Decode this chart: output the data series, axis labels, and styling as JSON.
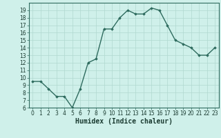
{
  "x": [
    0,
    1,
    2,
    3,
    4,
    5,
    6,
    7,
    8,
    9,
    10,
    11,
    12,
    13,
    14,
    15,
    16,
    17,
    18,
    19,
    20,
    21,
    22,
    23
  ],
  "y": [
    9.5,
    9.5,
    8.5,
    7.5,
    7.5,
    6.0,
    8.5,
    12.0,
    12.5,
    16.5,
    16.5,
    18.0,
    19.0,
    18.5,
    18.5,
    19.3,
    19.0,
    17.0,
    15.0,
    14.5,
    14.0,
    13.0,
    13.0,
    14.0
  ],
  "line_color": "#2e6b5e",
  "marker": "D",
  "markersize": 1.8,
  "linewidth": 1.0,
  "xlabel": "Humidex (Indice chaleur)",
  "ylim": [
    6,
    20
  ],
  "xlim": [
    -0.5,
    23.5
  ],
  "yticks": [
    6,
    7,
    8,
    9,
    10,
    11,
    12,
    13,
    14,
    15,
    16,
    17,
    18,
    19
  ],
  "xticks": [
    0,
    1,
    2,
    3,
    4,
    5,
    6,
    7,
    8,
    9,
    10,
    11,
    12,
    13,
    14,
    15,
    16,
    17,
    18,
    19,
    20,
    21,
    22,
    23
  ],
  "bg_color": "#cff0ea",
  "grid_color": "#b0d8d0",
  "tick_fontsize": 5.5,
  "xlabel_fontsize": 7.0,
  "xlabel_color": "#1a3a30"
}
